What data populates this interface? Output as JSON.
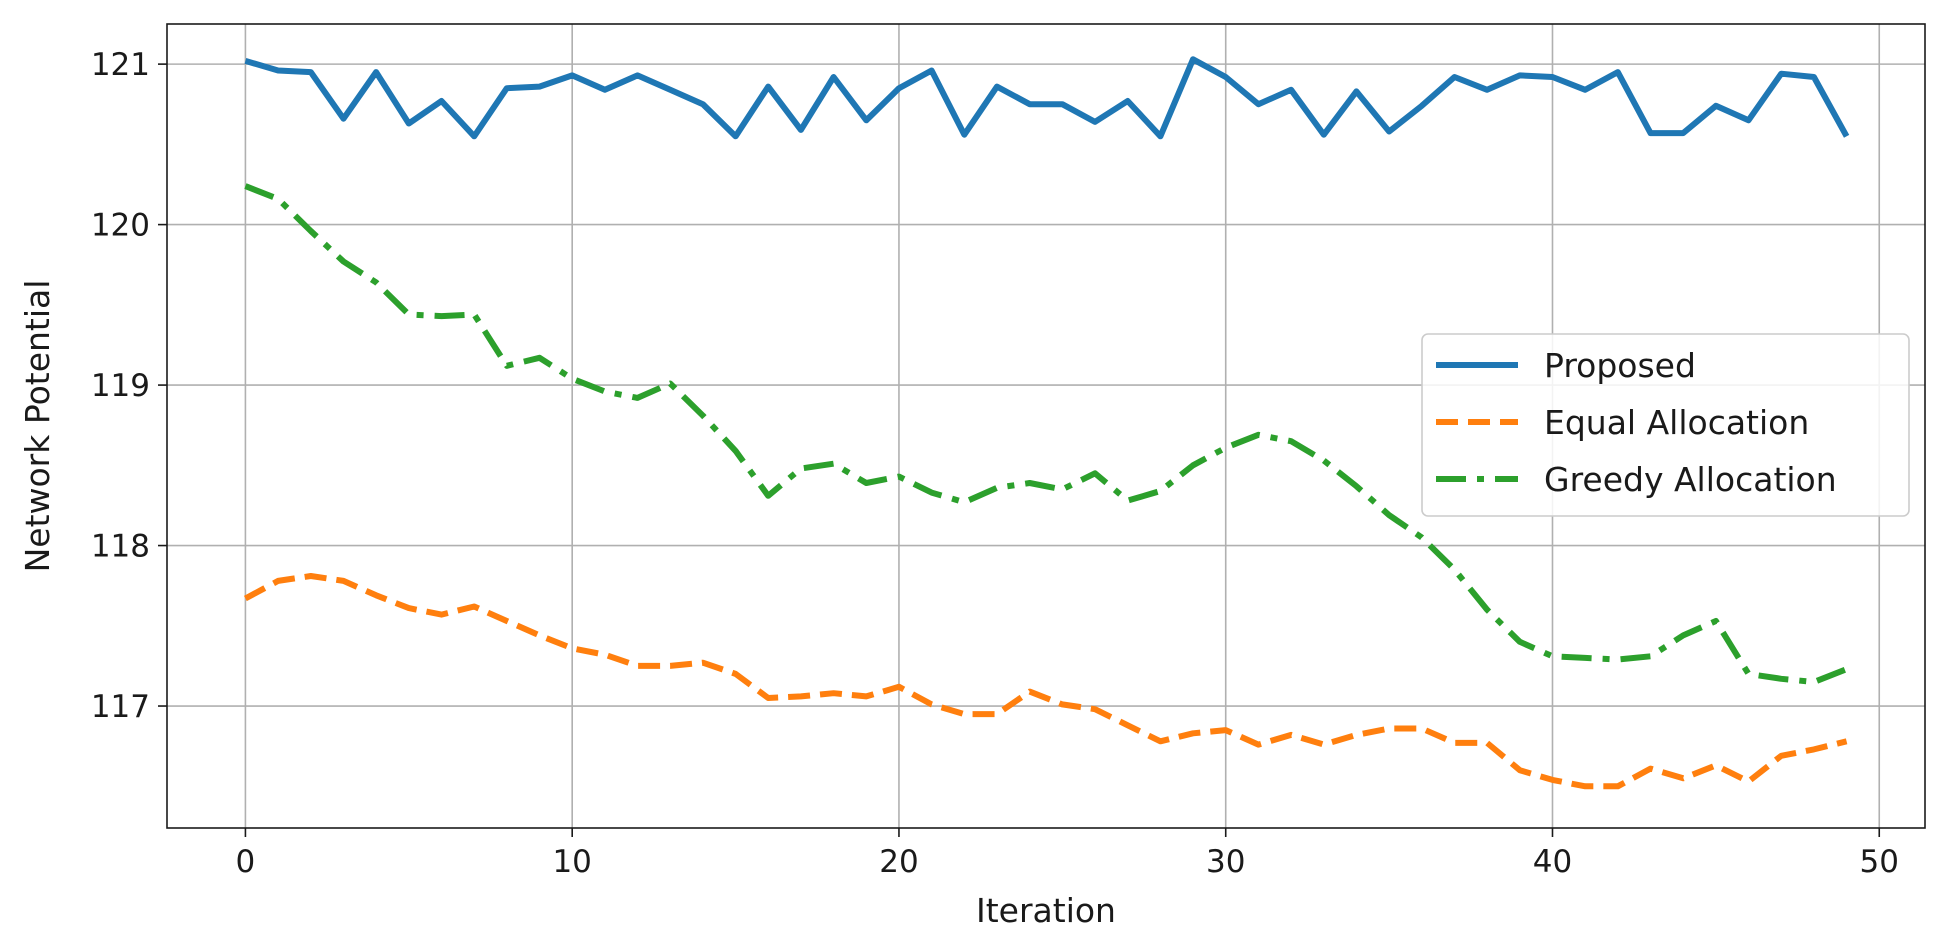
{
  "chart_data": {
    "type": "line",
    "xlabel": "Iteration",
    "ylabel": "Network Potential",
    "xlim": [
      -2.4,
      51.4
    ],
    "ylim": [
      116.24,
      121.25
    ],
    "xticks": [
      0,
      10,
      20,
      30,
      40,
      50
    ],
    "yticks": [
      117,
      118,
      119,
      120,
      121
    ],
    "grid": true,
    "legend_position": "center-right",
    "x": [
      0,
      1,
      2,
      3,
      4,
      5,
      6,
      7,
      8,
      9,
      10,
      11,
      12,
      13,
      14,
      15,
      16,
      17,
      18,
      19,
      20,
      21,
      22,
      23,
      24,
      25,
      26,
      27,
      28,
      29,
      30,
      31,
      32,
      33,
      34,
      35,
      36,
      37,
      38,
      39,
      40,
      41,
      42,
      43,
      44,
      45,
      46,
      47,
      48,
      49
    ],
    "series": [
      {
        "name": "Proposed",
        "color": "#1f77b4",
        "style": "solid",
        "values": [
          121.02,
          120.96,
          120.95,
          120.66,
          120.95,
          120.63,
          120.77,
          120.55,
          120.85,
          120.86,
          120.93,
          120.84,
          120.93,
          120.84,
          120.75,
          120.55,
          120.86,
          120.59,
          120.92,
          120.65,
          120.85,
          120.96,
          120.56,
          120.86,
          120.75,
          120.75,
          120.64,
          120.77,
          120.55,
          121.03,
          120.92,
          120.75,
          120.84,
          120.56,
          120.83,
          120.58,
          120.74,
          120.92,
          120.84,
          120.93,
          120.92,
          120.84,
          120.95,
          120.57,
          120.57,
          120.74,
          120.65,
          120.94,
          120.92,
          120.55
        ]
      },
      {
        "name": "Equal Allocation",
        "color": "#ff7f0e",
        "style": "dashed",
        "values": [
          117.67,
          117.78,
          117.81,
          117.78,
          117.69,
          117.61,
          117.57,
          117.62,
          117.53,
          117.44,
          117.36,
          117.32,
          117.25,
          117.25,
          117.27,
          117.2,
          117.05,
          117.06,
          117.08,
          117.06,
          117.12,
          117.01,
          116.95,
          116.95,
          117.09,
          117.01,
          116.98,
          116.88,
          116.78,
          116.83,
          116.85,
          116.76,
          116.82,
          116.76,
          116.82,
          116.86,
          116.86,
          116.77,
          116.77,
          116.6,
          116.54,
          116.5,
          116.5,
          116.61,
          116.55,
          116.63,
          116.53,
          116.69,
          116.73,
          116.78
        ]
      },
      {
        "name": "Greedy Allocation",
        "color": "#2ca02c",
        "style": "dashdot",
        "values": [
          120.24,
          120.16,
          119.96,
          119.77,
          119.64,
          119.44,
          119.43,
          119.44,
          119.12,
          119.17,
          119.04,
          118.96,
          118.92,
          119.01,
          118.81,
          118.59,
          118.31,
          118.48,
          118.51,
          118.39,
          118.43,
          118.33,
          118.27,
          118.36,
          118.39,
          118.35,
          118.45,
          118.28,
          118.34,
          118.5,
          118.61,
          118.69,
          118.65,
          118.53,
          118.37,
          118.19,
          118.05,
          117.85,
          117.6,
          117.4,
          117.31,
          117.3,
          117.29,
          117.31,
          117.44,
          117.53,
          117.2,
          117.17,
          117.15,
          117.23
        ]
      }
    ]
  }
}
